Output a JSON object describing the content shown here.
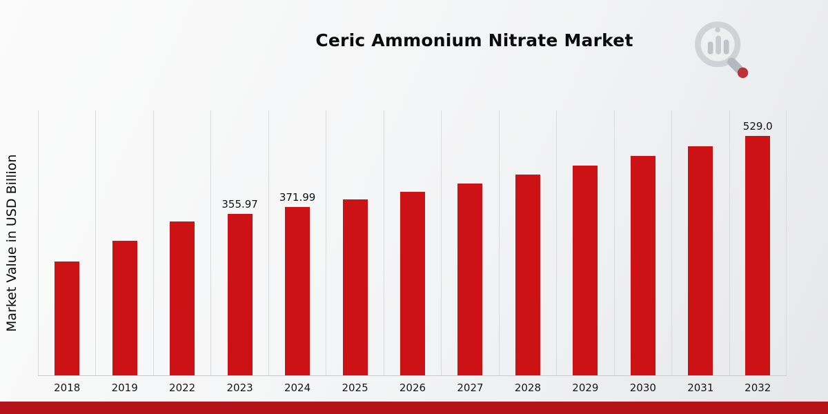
{
  "chart_data": {
    "type": "bar",
    "title": "Ceric Ammonium Nitrate Market",
    "ylabel": "Market Value in USD Billion",
    "xlabel": "",
    "categories": [
      "2018",
      "2019",
      "2022",
      "2023",
      "2024",
      "2025",
      "2026",
      "2027",
      "2028",
      "2029",
      "2030",
      "2031",
      "2032"
    ],
    "values": [
      252,
      297,
      340,
      355.97,
      371.99,
      389,
      406,
      424,
      443,
      463,
      484,
      506,
      529.0
    ],
    "data_labels": [
      "",
      "",
      "",
      "355.97",
      "371.99",
      "",
      "",
      "",
      "",
      "",
      "",
      "",
      "529.0"
    ],
    "ylim": [
      0,
      585
    ],
    "grid": "vertical-light",
    "legend": "none",
    "colors": {
      "bar": "#cc1214",
      "accent_bar": "#b5121a",
      "gridline": "#d9dadc"
    }
  }
}
